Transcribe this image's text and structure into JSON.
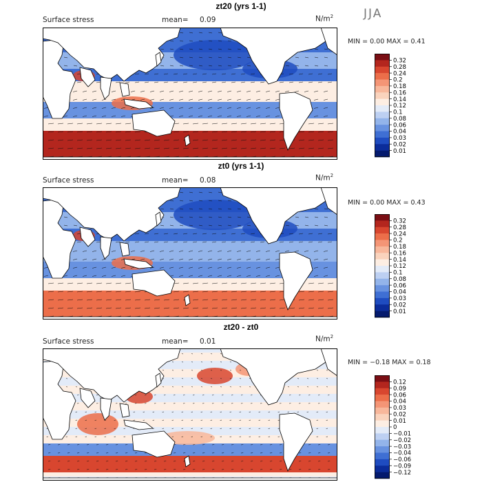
{
  "season": "JJA",
  "panels": [
    {
      "title": "zt20 (yrs 1-1)",
      "left_label": "Surface stress",
      "mean_label": "mean=",
      "mean_value": "0.09",
      "unit_base": "N/m",
      "unit_exp": "2",
      "minmax": "MIN =   0.00 MAX =   0.41",
      "colorbar": {
        "labels": [
          "0.32",
          "0.28",
          "0.24",
          "0.2",
          "0.18",
          "0.16",
          "0.14",
          "0.12",
          "0.1",
          "0.08",
          "0.06",
          "0.04",
          "0.03",
          "0.02",
          "0.01"
        ],
        "colors": [
          "#7a0e14",
          "#b3261e",
          "#d8462f",
          "#ec6e4a",
          "#f49576",
          "#f8b79b",
          "#fad3bd",
          "#fdeee3",
          "#e3ebf8",
          "#bdd0f2",
          "#93b4ea",
          "#6892e0",
          "#3f6fd3",
          "#1f4cc0",
          "#0b2c9a",
          "#041a6e"
        ]
      }
    },
    {
      "title": "zt0 (yrs 1-1)",
      "left_label": "Surface stress",
      "mean_label": "mean=",
      "mean_value": "0.08",
      "unit_base": "N/m",
      "unit_exp": "2",
      "minmax": "MIN =   0.00 MAX =   0.43",
      "colorbar": {
        "labels": [
          "0.32",
          "0.28",
          "0.24",
          "0.2",
          "0.18",
          "0.16",
          "0.14",
          "0.12",
          "0.1",
          "0.08",
          "0.06",
          "0.04",
          "0.03",
          "0.02",
          "0.01"
        ],
        "colors": [
          "#7a0e14",
          "#b3261e",
          "#d8462f",
          "#ec6e4a",
          "#f49576",
          "#f8b79b",
          "#fad3bd",
          "#fdeee3",
          "#e3ebf8",
          "#bdd0f2",
          "#93b4ea",
          "#6892e0",
          "#3f6fd3",
          "#1f4cc0",
          "#0b2c9a",
          "#041a6e"
        ]
      }
    },
    {
      "title": "zt20 - zt0",
      "left_label": "Surface stress",
      "mean_label": "mean=",
      "mean_value": "0.01",
      "unit_base": "N/m",
      "unit_exp": "2",
      "minmax": "MIN =  −0.18 MAX =   0.18",
      "colorbar": {
        "labels": [
          "0.12",
          "0.09",
          "0.06",
          "0.04",
          "0.03",
          "0.02",
          "0.01",
          "0",
          "−0.01",
          "−0.02",
          "−0.03",
          "−0.04",
          "−0.06",
          "−0.09",
          "−0.12"
        ],
        "colors": [
          "#7a0e14",
          "#b3261e",
          "#d8462f",
          "#ec6e4a",
          "#f49576",
          "#f8b79b",
          "#fad3bd",
          "#fdeee3",
          "#e3ebf8",
          "#bdd0f2",
          "#93b4ea",
          "#6892e0",
          "#3f6fd3",
          "#1f4cc0",
          "#0b2c9a",
          "#041a6e"
        ]
      }
    }
  ],
  "chart_data": {
    "type": "heatmap",
    "season": "JJA",
    "panels": [
      {
        "title": "zt20 (yrs 1-1)",
        "variable": "Surface stress",
        "units": "N/m2",
        "mean": 0.09,
        "min": 0.0,
        "max": 0.41,
        "levels": [
          0.01,
          0.02,
          0.03,
          0.04,
          0.06,
          0.08,
          0.1,
          0.12,
          0.14,
          0.16,
          0.18,
          0.2,
          0.24,
          0.28,
          0.32
        ]
      },
      {
        "title": "zt0 (yrs 1-1)",
        "variable": "Surface stress",
        "units": "N/m2",
        "mean": 0.08,
        "min": 0.0,
        "max": 0.43,
        "levels": [
          0.01,
          0.02,
          0.03,
          0.04,
          0.06,
          0.08,
          0.1,
          0.12,
          0.14,
          0.16,
          0.18,
          0.2,
          0.24,
          0.28,
          0.32
        ]
      },
      {
        "title": "zt20 - zt0",
        "variable": "Surface stress",
        "units": "N/m2",
        "mean": 0.01,
        "min": -0.18,
        "max": 0.18,
        "levels": [
          -0.12,
          -0.09,
          -0.06,
          -0.04,
          -0.03,
          -0.02,
          -0.01,
          0,
          0.01,
          0.02,
          0.03,
          0.04,
          0.06,
          0.09,
          0.12
        ]
      }
    ]
  }
}
